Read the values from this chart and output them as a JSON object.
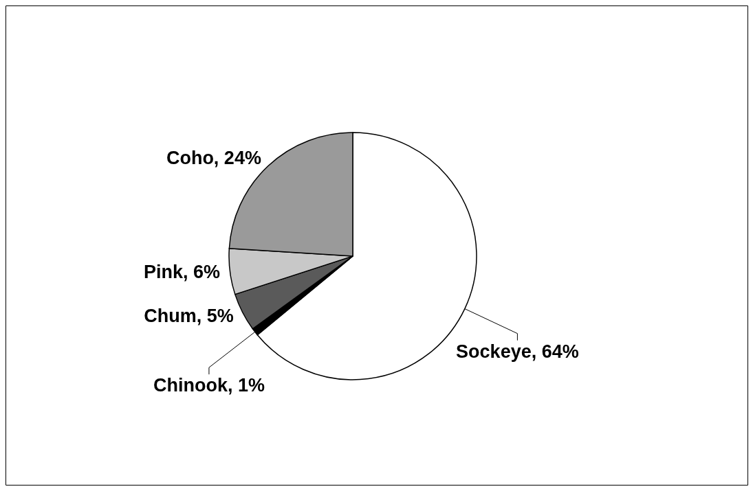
{
  "chart_data": {
    "type": "pie",
    "categories": [
      "Sockeye",
      "Chinook",
      "Chum",
      "Pink",
      "Coho"
    ],
    "values": [
      64,
      1,
      5,
      6,
      24
    ],
    "colors": [
      "#ffffff",
      "#000000",
      "#5a5a5a",
      "#c8c8c8",
      "#9a9a9a"
    ],
    "value_labels": [
      "64%",
      "1%",
      "5%",
      "6%",
      "24%"
    ]
  }
}
